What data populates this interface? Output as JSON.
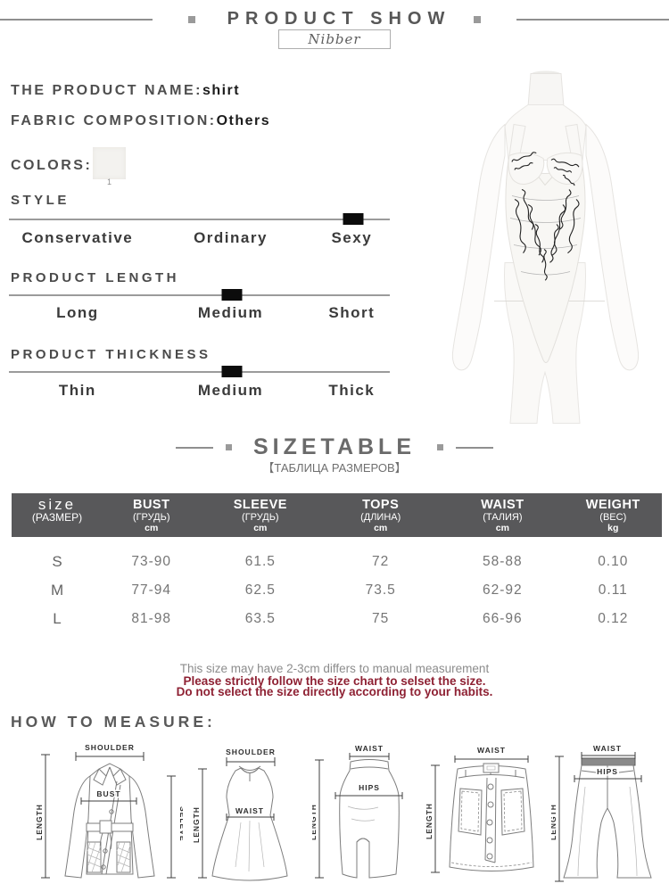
{
  "header": {
    "title": "PRODUCT SHOW",
    "brand": "Nibber"
  },
  "product": {
    "name_label": "THE PRODUCT NAME:",
    "name_value": "shirt",
    "fabric_label": "FABRIC COMPOSITION:",
    "fabric_value": "Others",
    "colors_label": "COLORS:",
    "color_swatches": [
      {
        "index": "1"
      }
    ]
  },
  "attributes": [
    {
      "label": "STYLE",
      "options": [
        "Conservative",
        "Ordinary",
        "Sexy"
      ],
      "selected": "Sexy",
      "marker_percent": 90.4
    },
    {
      "label": "PRODUCT LENGTH",
      "options": [
        "Long",
        "Medium",
        "Short"
      ],
      "selected": "Medium",
      "marker_percent": 58.5
    },
    {
      "label": "PRODUCT THICKNESS",
      "options": [
        "Thin",
        "Medium",
        "Thick"
      ],
      "selected": "Medium",
      "marker_percent": 58.5
    }
  ],
  "sizetable": {
    "title": "SIZETABLE",
    "subtitle": "【ТАБЛИЦА РАЗМЕРОВ】",
    "columns": [
      {
        "label": "size",
        "sub": "(РАЗМЕР)",
        "unit": ""
      },
      {
        "label": "BUST",
        "sub": "(ГРУДЬ)",
        "unit": "cm"
      },
      {
        "label": "SLEEVE",
        "sub": "(ГРУДЬ)",
        "unit": "cm"
      },
      {
        "label": "TOPS",
        "sub": "(ДЛИНА)",
        "unit": "cm"
      },
      {
        "label": "WAIST",
        "sub": "(ТАЛИЯ)",
        "unit": "cm"
      },
      {
        "label": "WEIGHT",
        "sub": "(ВЕС)",
        "unit": "kg"
      }
    ],
    "rows": [
      {
        "size": "S",
        "bust": "73-90",
        "sleeve": "61.5",
        "tops": "72",
        "waist": "58-88",
        "weight": "0.10"
      },
      {
        "size": "M",
        "bust": "77-94",
        "sleeve": "62.5",
        "tops": "73.5",
        "waist": "62-92",
        "weight": "0.11"
      },
      {
        "size": "L",
        "bust": "81-98",
        "sleeve": "63.5",
        "tops": "75",
        "waist": "66-96",
        "weight": "0.12"
      }
    ],
    "note_gray": "This size may have 2-3cm differs to manual measurement",
    "note_red_1": "Please strictly follow the size chart to selset the size.",
    "note_red_2": "Do not select the size directly according to your habits."
  },
  "measure": {
    "title": "HOW TO MEASURE:",
    "diagrams": [
      {
        "name": "jacket",
        "labels": {
          "shoulder": "SHOULDER",
          "length": "LENGTH",
          "bust": "BUST",
          "sleeve": "SELEVE"
        }
      },
      {
        "name": "dress",
        "labels": {
          "shoulder": "SHOULDER",
          "length": "LENGTH",
          "waist": "WAIST"
        }
      },
      {
        "name": "midi-skirt",
        "labels": {
          "length": "LENGTH",
          "waist": "WAIST",
          "hips": "HIPS"
        }
      },
      {
        "name": "mini-skirt",
        "labels": {
          "length": "LENGTH",
          "waist": "WAIST"
        }
      },
      {
        "name": "pants",
        "labels": {
          "length": "LENGTH",
          "waist": "WAIST",
          "hips": "HIPS"
        }
      }
    ]
  },
  "colors": {
    "accent_red": "#8e2133",
    "table_header_bg": "#58585a",
    "marker": "#0c0c0c"
  }
}
